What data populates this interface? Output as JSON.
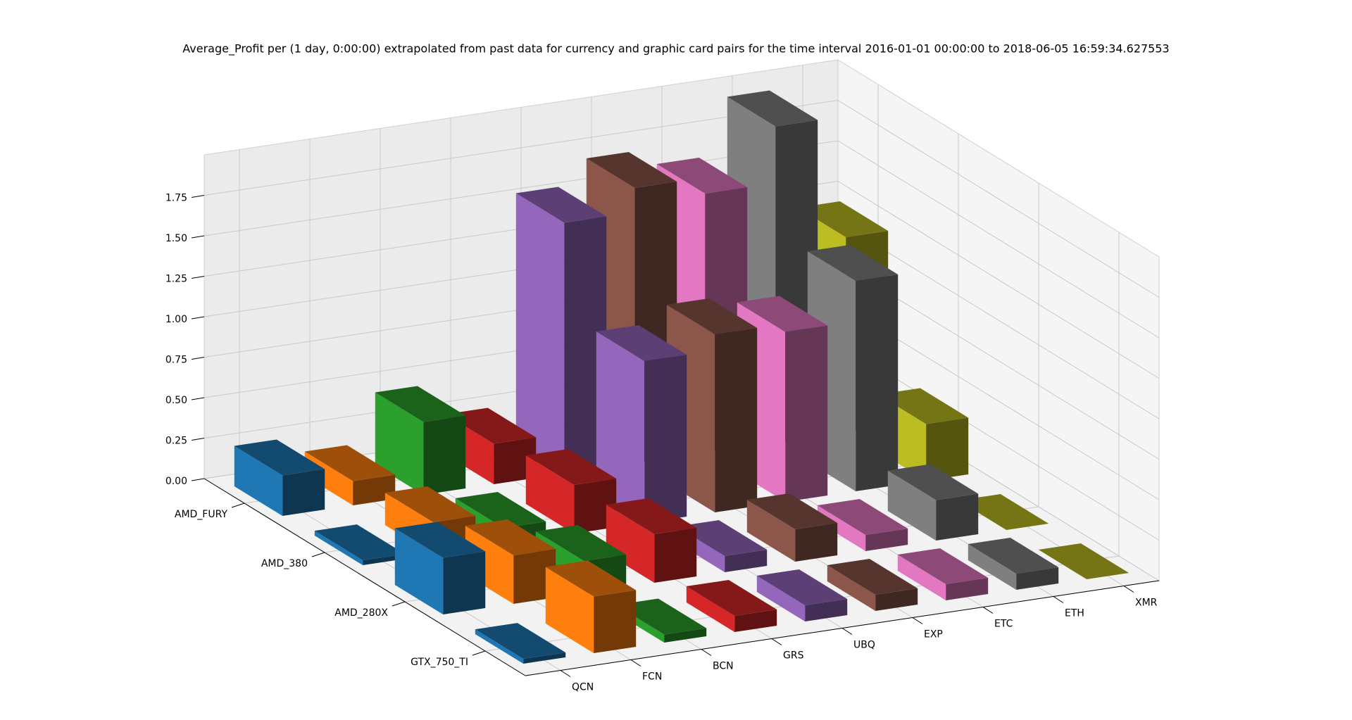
{
  "chart_data": {
    "type": "bar3d",
    "title": "Average_Profit per (1 day, 0:00:00) extrapolated from past data for currency and graphic card pairs for the time interval 2016-01-01 00:00:00 to 2018-06-05 16:59:34.627553",
    "categories": [
      "AMD_FURY",
      "AMD_380",
      "AMD_280X",
      "GTX_750_TI"
    ],
    "currencies": [
      "QCN",
      "FCN",
      "BCN",
      "GRS",
      "UBQ",
      "EXP",
      "ETC",
      "ETH",
      "XMR"
    ],
    "colors": [
      "#1f77b4",
      "#ff7f0e",
      "#2ca02c",
      "#d62728",
      "#9467bd",
      "#8c564b",
      "#e377c2",
      "#7f7f7f",
      "#bcbd22"
    ],
    "values": [
      [
        0.25,
        0.15,
        0.45,
        0.25,
        1.55,
        1.7,
        1.6,
        1.95,
        1.2
      ],
      [
        0.03,
        0.2,
        0.1,
        0.3,
        1.0,
        1.1,
        1.05,
        1.3,
        0.35
      ],
      [
        0.35,
        0.3,
        0.2,
        0.3,
        0.1,
        0.2,
        0.1,
        0.25,
        0.0
      ],
      [
        0.03,
        0.35,
        0.05,
        0.1,
        0.1,
        0.1,
        0.1,
        0.1,
        0.0
      ]
    ],
    "zlim": [
      0,
      2.0
    ],
    "zticks": [
      {
        "value": 0,
        "label": "0.00"
      },
      0.25,
      {
        "value": 0.5,
        "label": "0.50"
      },
      0.75,
      {
        "value": 1.0,
        "label": "1.00"
      },
      1.25,
      {
        "value": 1.5,
        "label": "1.50"
      },
      1.75
    ],
    "grid": true
  }
}
